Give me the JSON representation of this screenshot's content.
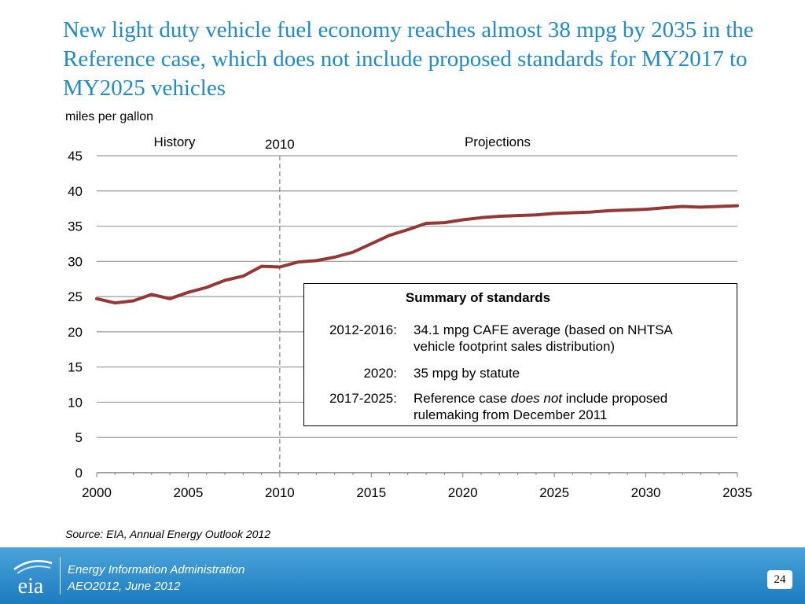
{
  "title": "New light duty vehicle fuel economy reaches almost 38 mpg by 2035 in the Reference case, which does not include proposed standards for MY2017 to MY2025 vehicles",
  "chart_data": {
    "type": "line",
    "ylabel": "miles per gallon",
    "xlabel": "",
    "xlim": [
      2000,
      2035
    ],
    "ylim": [
      0,
      45
    ],
    "x_ticks": [
      2000,
      2005,
      2010,
      2015,
      2020,
      2025,
      2030,
      2035
    ],
    "y_ticks": [
      0,
      5,
      10,
      15,
      20,
      25,
      30,
      35,
      40,
      45
    ],
    "grid": "horizontal",
    "divider": {
      "x": 2010,
      "label": "2010"
    },
    "region_labels": {
      "left": "History",
      "right": "Projections"
    },
    "series": [
      {
        "color": "#953735",
        "x": [
          2000,
          2001,
          2002,
          2003,
          2004,
          2005,
          2006,
          2007,
          2008,
          2009,
          2010,
          2011,
          2012,
          2013,
          2014,
          2015,
          2016,
          2017,
          2018,
          2019,
          2020,
          2021,
          2022,
          2023,
          2024,
          2025,
          2026,
          2027,
          2028,
          2029,
          2030,
          2031,
          2032,
          2033,
          2034,
          2035
        ],
        "values": [
          24.7,
          24.1,
          24.4,
          25.3,
          24.7,
          25.6,
          26.3,
          27.3,
          27.9,
          29.3,
          29.2,
          29.9,
          30.1,
          30.6,
          31.3,
          32.5,
          33.7,
          34.5,
          35.4,
          35.5,
          35.9,
          36.2,
          36.4,
          36.5,
          36.6,
          36.8,
          36.9,
          37.0,
          37.2,
          37.3,
          37.4,
          37.6,
          37.8,
          37.7,
          37.8,
          37.9
        ]
      }
    ]
  },
  "summary": {
    "title": "Summary of standards",
    "rows": [
      {
        "period": "2012-2016:",
        "desc_line1": "34.1 mpg CAFE average (based on NHTSA",
        "desc_line2": "vehicle footprint sales distribution)"
      },
      {
        "period": "2020:",
        "desc_line1": "35 mpg by statute",
        "desc_line2": ""
      },
      {
        "period": "2017-2025:",
        "desc_pre": "Reference case ",
        "desc_em": "does not",
        "desc_post": " include proposed",
        "desc_line2": "rulemaking from December 2011"
      }
    ]
  },
  "source": "Source:  EIA, Annual Energy Outlook 2012",
  "footer": {
    "logo_text": "eia",
    "line1": "Energy Information Administration",
    "line2": "AEO2012, June 2012",
    "page_number": "24"
  }
}
